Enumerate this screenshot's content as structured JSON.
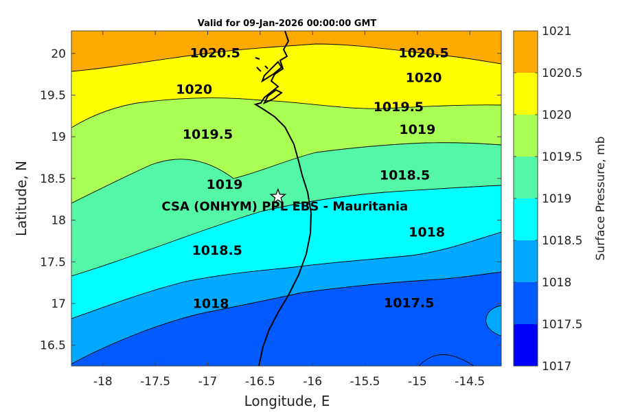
{
  "title": "Valid for 09-Jan-2026 00:00:00 GMT",
  "site_label": "CSA (ONHYM) PPL EBS  - Mauritania",
  "site_location": {
    "lon": -16.33,
    "lat": 18.28
  },
  "axes": {
    "xlabel": "Longitude, E",
    "ylabel": "Latitude, N",
    "xlim": [
      -18.3,
      -14.2
    ],
    "ylim": [
      16.25,
      20.27
    ],
    "xticks": [
      "-18",
      "-17.5",
      "-17",
      "-16.5",
      "-16",
      "-15.5",
      "-15",
      "-14.5"
    ],
    "yticks": [
      "16.5",
      "17",
      "17.5",
      "18",
      "18.5",
      "19",
      "19.5",
      "20"
    ]
  },
  "colorbar": {
    "label": "Surface Pressure, mb",
    "ticks": [
      "1017",
      "1017.5",
      "1018",
      "1018.5",
      "1019",
      "1019.5",
      "1020",
      "1020.5",
      "1021"
    ],
    "colors": [
      "#0000ff",
      "#005aff",
      "#00a8ff",
      "#00ffff",
      "#54f7a6",
      "#aaff54",
      "#ffff00",
      "#ffaa00",
      "#ff5500"
    ]
  },
  "contour_labels": [
    {
      "text": "1020.5",
      "lon": -16.93,
      "lat": 20.0
    },
    {
      "text": "1020.5",
      "lon": -14.94,
      "lat": 20.0
    },
    {
      "text": "1020",
      "lon": -17.13,
      "lat": 19.56
    },
    {
      "text": "1020",
      "lon": -14.94,
      "lat": 19.7
    },
    {
      "text": "1019.5",
      "lon": -17.0,
      "lat": 19.02
    },
    {
      "text": "1019.5",
      "lon": -15.18,
      "lat": 19.35
    },
    {
      "text": "1019",
      "lon": -16.84,
      "lat": 18.42
    },
    {
      "text": "1019",
      "lon": -15.0,
      "lat": 19.08
    },
    {
      "text": "1018.5",
      "lon": -16.91,
      "lat": 17.63
    },
    {
      "text": "1018.5",
      "lon": -15.12,
      "lat": 18.53
    },
    {
      "text": "1018",
      "lon": -16.97,
      "lat": 16.99
    },
    {
      "text": "1018",
      "lon": -14.91,
      "lat": 17.85
    },
    {
      "text": "1017.5",
      "lon": -15.08,
      "lat": 17.0
    }
  ],
  "icons": {
    "site": "star-icon"
  }
}
